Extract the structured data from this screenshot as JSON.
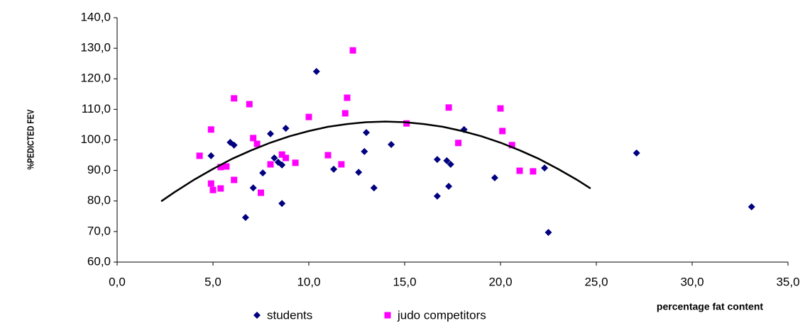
{
  "chart_data": {
    "type": "scatter",
    "x_label": "percentage fat content",
    "y_label": "%PEDICTED FEV",
    "xlim": [
      0,
      35
    ],
    "xticks": [
      {
        "value": 0,
        "label": "0,0"
      },
      {
        "value": 5,
        "label": "5,0"
      },
      {
        "value": 10,
        "label": "10,0"
      },
      {
        "value": 15,
        "label": "15,0"
      },
      {
        "value": 20,
        "label": "20,0"
      },
      {
        "value": 25,
        "label": "25,0"
      },
      {
        "value": 30,
        "label": "30,0"
      },
      {
        "value": 35,
        "label": "35,0"
      }
    ],
    "ylim": [
      60,
      140
    ],
    "yticks": [
      {
        "value": 60,
        "label": "60,0"
      },
      {
        "value": 70,
        "label": "70,0"
      },
      {
        "value": 80,
        "label": "80,0"
      },
      {
        "value": 90,
        "label": "90,0"
      },
      {
        "value": 100,
        "label": "100,0"
      },
      {
        "value": 110,
        "label": "110,0"
      },
      {
        "value": 120,
        "label": "120,0"
      },
      {
        "value": 130,
        "label": "130,0"
      },
      {
        "value": 140,
        "label": "140,0"
      }
    ],
    "grid": false,
    "legend": "bottom",
    "series": [
      {
        "name": "students",
        "color": "#000080",
        "marker": "diamond",
        "x": [
          4.9,
          5.9,
          6.1,
          6.7,
          7.1,
          7.6,
          8.0,
          8.2,
          8.4,
          8.6,
          8.6,
          8.8,
          10.4,
          11.3,
          12.6,
          12.9,
          13.0,
          13.4,
          14.3,
          16.7,
          16.7,
          17.2,
          17.4,
          17.3,
          18.1,
          19.7,
          22.3,
          22.5,
          27.1,
          33.1
        ],
        "values": [
          94.8,
          99.2,
          98.3,
          74.6,
          84.3,
          89.2,
          102.0,
          94.1,
          92.7,
          91.8,
          79.2,
          103.8,
          122.4,
          90.4,
          89.4,
          96.2,
          102.4,
          84.3,
          98.5,
          93.6,
          81.6,
          93.2,
          92.0,
          84.8,
          103.4,
          87.6,
          90.8,
          69.7,
          95.7,
          78.1
        ]
      },
      {
        "name": "judo competitors",
        "color": "#ff00ff",
        "marker": "square",
        "x": [
          4.3,
          4.9,
          4.9,
          5.0,
          5.4,
          5.7,
          5.4,
          6.1,
          6.1,
          6.9,
          7.1,
          7.3,
          7.5,
          8.0,
          8.6,
          8.8,
          9.3,
          10.0,
          11.0,
          11.7,
          11.9,
          12.0,
          12.3,
          15.1,
          17.3,
          17.8,
          20.0,
          20.1,
          20.6,
          21.0,
          21.7
        ],
        "values": [
          94.8,
          103.4,
          85.7,
          83.6,
          84.1,
          91.3,
          91.1,
          113.6,
          86.9,
          111.7,
          100.6,
          98.7,
          82.7,
          92.0,
          95.2,
          94.1,
          92.5,
          107.5,
          95.0,
          92.0,
          108.7,
          113.8,
          129.3,
          105.4,
          110.6,
          99.0,
          110.3,
          102.9,
          98.3,
          89.9,
          89.7
        ]
      }
    ],
    "trendline": {
      "color": "#000000",
      "x": [
        2.3,
        3,
        4,
        5,
        6,
        7,
        8,
        9,
        10,
        11,
        12,
        13,
        14,
        15,
        16,
        17,
        18,
        19,
        20,
        21,
        22,
        23,
        24,
        24.7
      ],
      "values": [
        79.9,
        82.9,
        86.9,
        90.5,
        93.8,
        96.6,
        99.1,
        101.2,
        102.9,
        104.3,
        105.2,
        105.8,
        106.0,
        105.8,
        105.2,
        104.3,
        102.9,
        101.2,
        99.1,
        96.6,
        93.8,
        90.5,
        86.9,
        84.1
      ]
    }
  }
}
